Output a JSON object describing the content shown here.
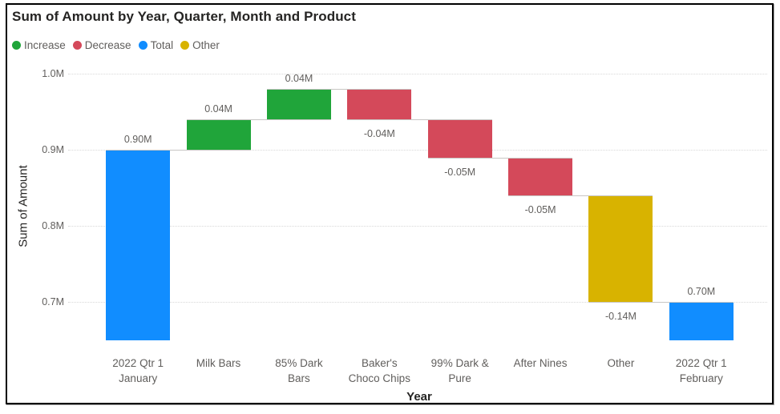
{
  "title": "Sum of Amount by Year, Quarter, Month and Product",
  "legend": [
    {
      "id": "increase",
      "label": "Increase",
      "color": "#20A53A"
    },
    {
      "id": "decrease",
      "label": "Decrease",
      "color": "#D4495A"
    },
    {
      "id": "total",
      "label": "Total",
      "color": "#118DFF"
    },
    {
      "id": "other",
      "label": "Other",
      "color": "#D8B300"
    }
  ],
  "colors": {
    "increase": "#20A53A",
    "decrease": "#D4495A",
    "total": "#118DFF",
    "other": "#D8B300",
    "connector": "#C8C6C4",
    "gridline": "#D8D8D8",
    "label_gray": "#605E5C",
    "title_dark": "#252423"
  },
  "chart_data": {
    "type": "waterfall",
    "title": "Sum of Amount by Year, Quarter, Month and Product",
    "xlabel": "Year",
    "ylabel": "Sum of Amount",
    "legend_position": "top",
    "grid": "dotted-horizontal",
    "ylim": [
      0.65,
      1.0
    ],
    "y_ticks": [
      {
        "label": "1.0M",
        "value": 1.0
      },
      {
        "label": "0.9M",
        "value": 0.9
      },
      {
        "label": "0.8M",
        "value": 0.8
      },
      {
        "label": "0.7M",
        "value": 0.7
      }
    ],
    "bars": [
      {
        "category_lines": [
          "2022 Qtr 1",
          "January"
        ],
        "type": "total",
        "value": 0.9,
        "label": "0.90M",
        "from": 0.65,
        "to": 0.9,
        "label_pos": "above"
      },
      {
        "category_lines": [
          "Milk Bars"
        ],
        "type": "increase",
        "value": 0.04,
        "label": "0.04M",
        "from": 0.9,
        "to": 0.94,
        "label_pos": "above"
      },
      {
        "category_lines": [
          "85% Dark",
          "Bars"
        ],
        "type": "increase",
        "value": 0.04,
        "label": "0.04M",
        "from": 0.94,
        "to": 0.98,
        "label_pos": "above"
      },
      {
        "category_lines": [
          "Baker's",
          "Choco Chips"
        ],
        "type": "decrease",
        "value": -0.04,
        "label": "-0.04M",
        "from": 0.98,
        "to": 0.94,
        "label_pos": "below"
      },
      {
        "category_lines": [
          "99% Dark &",
          "Pure"
        ],
        "type": "decrease",
        "value": -0.05,
        "label": "-0.05M",
        "from": 0.94,
        "to": 0.89,
        "label_pos": "below"
      },
      {
        "category_lines": [
          "After Nines"
        ],
        "type": "decrease",
        "value": -0.05,
        "label": "-0.05M",
        "from": 0.89,
        "to": 0.84,
        "label_pos": "below"
      },
      {
        "category_lines": [
          "Other"
        ],
        "type": "other",
        "value": -0.14,
        "label": "-0.14M",
        "from": 0.84,
        "to": 0.7,
        "label_pos": "below"
      },
      {
        "category_lines": [
          "2022 Qtr 1",
          "February"
        ],
        "type": "total",
        "value": 0.7,
        "label": "0.70M",
        "from": 0.65,
        "to": 0.7,
        "label_pos": "above"
      }
    ]
  }
}
